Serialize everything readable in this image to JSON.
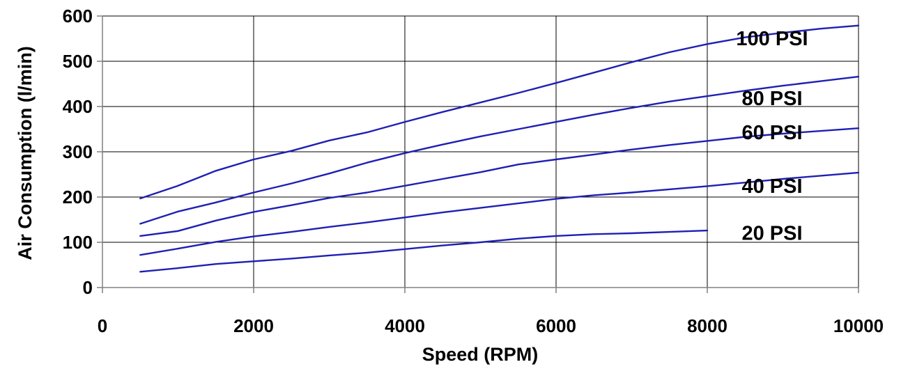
{
  "chart_data": {
    "type": "line",
    "title": "",
    "xlabel": "Speed (RPM)",
    "ylabel": "Air Consumption (l/min)",
    "xlim": [
      0,
      10000
    ],
    "ylim": [
      0,
      600
    ],
    "x_ticks": [
      "0",
      "2000",
      "4000",
      "6000",
      "8000",
      "10000"
    ],
    "y_ticks": [
      "0",
      "100",
      "200",
      "300",
      "400",
      "500",
      "600"
    ],
    "grid": true,
    "legend": "inline labels at right",
    "line_color": "#1f1fb4",
    "series": [
      {
        "name": "100 PSI",
        "x": [
          500,
          1000,
          1500,
          2000,
          2500,
          3000,
          3500,
          4000,
          4500,
          5000,
          5500,
          6000,
          6500,
          7000,
          7500,
          8000,
          8500,
          9000,
          9500,
          10000
        ],
        "values": [
          197,
          225,
          258,
          283,
          302,
          325,
          343,
          366,
          388,
          409,
          430,
          452,
          475,
          498,
          520,
          538,
          553,
          563,
          572,
          579
        ]
      },
      {
        "name": "80 PSI",
        "x": [
          500,
          1000,
          1500,
          2000,
          2500,
          3000,
          3500,
          4000,
          4500,
          5000,
          5500,
          6000,
          6500,
          7000,
          7500,
          8000,
          8500,
          9000,
          9500,
          10000
        ],
        "values": [
          141,
          168,
          188,
          210,
          230,
          252,
          276,
          297,
          316,
          334,
          350,
          366,
          382,
          397,
          411,
          423,
          435,
          446,
          456,
          466
        ]
      },
      {
        "name": "60 PSI",
        "x": [
          500,
          1000,
          1500,
          2000,
          2500,
          3000,
          3500,
          4000,
          4500,
          5000,
          5500,
          6000,
          6500,
          7000,
          7500,
          8000,
          8500,
          9000,
          9500,
          10000
        ],
        "values": [
          114,
          125,
          148,
          167,
          182,
          198,
          210,
          225,
          240,
          255,
          272,
          283,
          294,
          305,
          315,
          324,
          333,
          340,
          346,
          352
        ]
      },
      {
        "name": "40 PSI",
        "x": [
          500,
          1000,
          1500,
          2000,
          2500,
          3000,
          3500,
          4000,
          4500,
          5000,
          5500,
          6000,
          6500,
          7000,
          7500,
          8000,
          8500,
          9000,
          9500,
          10000
        ],
        "values": [
          72,
          86,
          101,
          113,
          123,
          134,
          144,
          155,
          166,
          176,
          186,
          196,
          204,
          210,
          217,
          224,
          232,
          240,
          247,
          254
        ]
      },
      {
        "name": "20 PSI",
        "x": [
          500,
          1000,
          1500,
          2000,
          2500,
          3000,
          3500,
          4000,
          4500,
          5000,
          5500,
          6000,
          6500,
          7000,
          7500,
          8000
        ],
        "values": [
          35,
          43,
          52,
          58,
          64,
          71,
          77,
          85,
          93,
          100,
          108,
          114,
          118,
          120,
          123,
          126
        ]
      }
    ]
  }
}
